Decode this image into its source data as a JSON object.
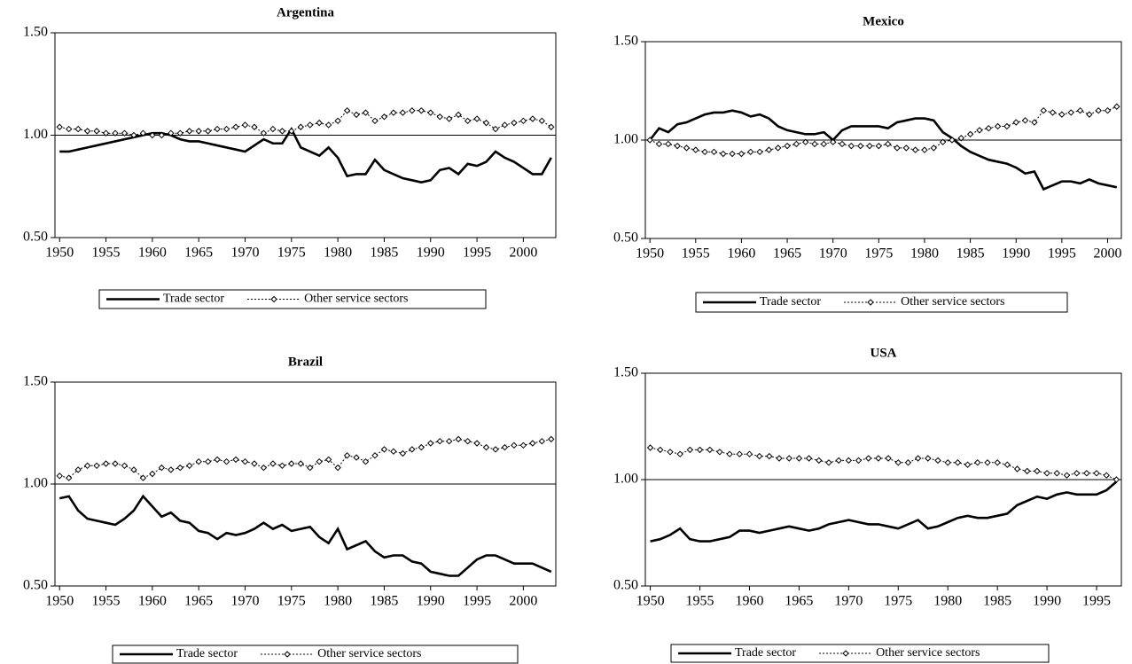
{
  "chart_data": [
    {
      "type": "line",
      "title": "Argentina",
      "x": [
        1950,
        1951,
        1952,
        1953,
        1954,
        1955,
        1956,
        1957,
        1958,
        1959,
        1960,
        1961,
        1962,
        1963,
        1964,
        1965,
        1966,
        1967,
        1968,
        1969,
        1970,
        1971,
        1972,
        1973,
        1974,
        1975,
        1976,
        1977,
        1978,
        1979,
        1980,
        1981,
        1982,
        1983,
        1984,
        1985,
        1986,
        1987,
        1988,
        1989,
        1990,
        1991,
        1992,
        1993,
        1994,
        1995,
        1996,
        1997,
        1998,
        1999,
        2000,
        2001,
        2002,
        2003
      ],
      "series": [
        {
          "name": "Trade sector",
          "color": "#000000",
          "line_style": "solid",
          "marker": "none",
          "values": [
            0.92,
            0.92,
            0.93,
            0.94,
            0.95,
            0.96,
            0.97,
            0.98,
            0.99,
            1.0,
            1.01,
            1.01,
            1.0,
            0.98,
            0.97,
            0.97,
            0.96,
            0.95,
            0.94,
            0.93,
            0.92,
            0.95,
            0.98,
            0.96,
            0.96,
            1.03,
            0.94,
            0.92,
            0.9,
            0.94,
            0.89,
            0.8,
            0.81,
            0.81,
            0.88,
            0.83,
            0.81,
            0.79,
            0.78,
            0.77,
            0.78,
            0.83,
            0.84,
            0.81,
            0.86,
            0.85,
            0.87,
            0.92,
            0.89,
            0.87,
            0.84,
            0.81,
            0.81,
            0.89
          ]
        },
        {
          "name": "Other service sectors",
          "color": "#000000",
          "line_style": "dotted",
          "marker": "diamond",
          "values": [
            1.04,
            1.03,
            1.03,
            1.02,
            1.02,
            1.01,
            1.01,
            1.01,
            1.0,
            1.01,
            1.0,
            1.0,
            1.01,
            1.01,
            1.02,
            1.02,
            1.02,
            1.03,
            1.03,
            1.04,
            1.05,
            1.04,
            1.01,
            1.03,
            1.02,
            1.02,
            1.04,
            1.05,
            1.06,
            1.05,
            1.07,
            1.12,
            1.1,
            1.11,
            1.07,
            1.09,
            1.11,
            1.11,
            1.12,
            1.12,
            1.11,
            1.09,
            1.08,
            1.1,
            1.07,
            1.08,
            1.06,
            1.03,
            1.05,
            1.06,
            1.07,
            1.08,
            1.07,
            1.04
          ]
        }
      ],
      "xlim": [
        1949.5,
        2003.5
      ],
      "xticks": [
        1950,
        1955,
        1960,
        1965,
        1970,
        1975,
        1980,
        1985,
        1990,
        1995,
        2000
      ],
      "ylim": [
        0.5,
        1.5
      ],
      "yticks": [
        {
          "value": 0.5,
          "label": "0.50"
        },
        {
          "value": 1,
          "label": "1.00"
        },
        {
          "value": 1.5,
          "label": "1.50"
        }
      ],
      "hline": 1,
      "legend": "bottom"
    },
    {
      "type": "line",
      "title": "Mexico",
      "x": [
        1950,
        1951,
        1952,
        1953,
        1954,
        1955,
        1956,
        1957,
        1958,
        1959,
        1960,
        1961,
        1962,
        1963,
        1964,
        1965,
        1966,
        1967,
        1968,
        1969,
        1970,
        1971,
        1972,
        1973,
        1974,
        1975,
        1976,
        1977,
        1978,
        1979,
        1980,
        1981,
        1982,
        1983,
        1984,
        1985,
        1986,
        1987,
        1988,
        1989,
        1990,
        1991,
        1992,
        1993,
        1994,
        1995,
        1996,
        1997,
        1998,
        1999,
        2000,
        2001
      ],
      "series": [
        {
          "name": "Trade sector",
          "color": "#000000",
          "line_style": "solid",
          "marker": "none",
          "values": [
            1.0,
            1.06,
            1.04,
            1.08,
            1.09,
            1.11,
            1.13,
            1.14,
            1.14,
            1.15,
            1.14,
            1.12,
            1.13,
            1.11,
            1.07,
            1.05,
            1.04,
            1.03,
            1.03,
            1.04,
            1.0,
            1.05,
            1.07,
            1.07,
            1.07,
            1.07,
            1.06,
            1.09,
            1.1,
            1.11,
            1.11,
            1.1,
            1.04,
            1.01,
            0.97,
            0.94,
            0.92,
            0.9,
            0.89,
            0.88,
            0.86,
            0.83,
            0.84,
            0.75,
            0.77,
            0.79,
            0.79,
            0.78,
            0.8,
            0.78,
            0.77,
            0.76
          ]
        },
        {
          "name": "Other service sectors",
          "color": "#000000",
          "line_style": "dotted",
          "marker": "diamond",
          "values": [
            1.0,
            0.98,
            0.98,
            0.97,
            0.96,
            0.95,
            0.94,
            0.94,
            0.93,
            0.93,
            0.93,
            0.94,
            0.94,
            0.95,
            0.96,
            0.97,
            0.98,
            0.99,
            0.98,
            0.98,
            0.99,
            0.98,
            0.97,
            0.97,
            0.97,
            0.97,
            0.98,
            0.96,
            0.96,
            0.95,
            0.95,
            0.96,
            0.99,
            1.0,
            1.01,
            1.03,
            1.05,
            1.06,
            1.07,
            1.07,
            1.09,
            1.1,
            1.09,
            1.15,
            1.14,
            1.13,
            1.14,
            1.15,
            1.13,
            1.15,
            1.15,
            1.17
          ]
        }
      ],
      "xlim": [
        1949.5,
        2001.5
      ],
      "xticks": [
        1950,
        1955,
        1960,
        1965,
        1970,
        1975,
        1980,
        1985,
        1990,
        1995,
        2000
      ],
      "ylim": [
        0.5,
        1.5
      ],
      "yticks": [
        {
          "value": 0.5,
          "label": "0.50"
        },
        {
          "value": 1,
          "label": "1.00"
        },
        {
          "value": 1.5,
          "label": "1.50"
        }
      ],
      "hline": 1,
      "legend": "bottom"
    },
    {
      "type": "line",
      "title": "Brazil",
      "x": [
        1950,
        1951,
        1952,
        1953,
        1954,
        1955,
        1956,
        1957,
        1958,
        1959,
        1960,
        1961,
        1962,
        1963,
        1964,
        1965,
        1966,
        1967,
        1968,
        1969,
        1970,
        1971,
        1972,
        1973,
        1974,
        1975,
        1976,
        1977,
        1978,
        1979,
        1980,
        1981,
        1982,
        1983,
        1984,
        1985,
        1986,
        1987,
        1988,
        1989,
        1990,
        1991,
        1992,
        1993,
        1994,
        1995,
        1996,
        1997,
        1998,
        1999,
        2000,
        2001,
        2002,
        2003
      ],
      "series": [
        {
          "name": "Trade sector",
          "color": "#000000",
          "line_style": "solid",
          "marker": "none",
          "values": [
            0.93,
            0.94,
            0.87,
            0.83,
            0.82,
            0.81,
            0.8,
            0.83,
            0.87,
            0.94,
            0.89,
            0.84,
            0.86,
            0.82,
            0.81,
            0.77,
            0.76,
            0.73,
            0.76,
            0.75,
            0.76,
            0.78,
            0.81,
            0.78,
            0.8,
            0.77,
            0.78,
            0.79,
            0.74,
            0.71,
            0.78,
            0.68,
            0.7,
            0.72,
            0.67,
            0.64,
            0.65,
            0.65,
            0.62,
            0.61,
            0.57,
            0.56,
            0.55,
            0.55,
            0.59,
            0.63,
            0.65,
            0.65,
            0.63,
            0.61,
            0.61,
            0.61,
            0.59,
            0.57
          ]
        },
        {
          "name": "Other service sectors",
          "color": "#000000",
          "line_style": "dotted",
          "marker": "diamond",
          "values": [
            1.04,
            1.03,
            1.07,
            1.09,
            1.09,
            1.1,
            1.1,
            1.09,
            1.07,
            1.03,
            1.05,
            1.08,
            1.07,
            1.08,
            1.09,
            1.11,
            1.11,
            1.12,
            1.11,
            1.12,
            1.11,
            1.1,
            1.08,
            1.1,
            1.09,
            1.1,
            1.1,
            1.08,
            1.11,
            1.12,
            1.08,
            1.14,
            1.13,
            1.11,
            1.14,
            1.17,
            1.16,
            1.15,
            1.17,
            1.18,
            1.2,
            1.21,
            1.21,
            1.22,
            1.21,
            1.2,
            1.18,
            1.17,
            1.18,
            1.19,
            1.19,
            1.2,
            1.21,
            1.22
          ]
        }
      ],
      "xlim": [
        1949.5,
        2003.5
      ],
      "xticks": [
        1950,
        1955,
        1960,
        1965,
        1970,
        1975,
        1980,
        1985,
        1990,
        1995,
        2000
      ],
      "ylim": [
        0.5,
        1.5
      ],
      "yticks": [
        {
          "value": 0.5,
          "label": "0.50"
        },
        {
          "value": 1,
          "label": "1.00"
        },
        {
          "value": 1.5,
          "label": "1.50"
        }
      ],
      "hline": 1,
      "legend": "bottom"
    },
    {
      "type": "line",
      "title": "USA",
      "x": [
        1950,
        1951,
        1952,
        1953,
        1954,
        1955,
        1956,
        1957,
        1958,
        1959,
        1960,
        1961,
        1962,
        1963,
        1964,
        1965,
        1966,
        1967,
        1968,
        1969,
        1970,
        1971,
        1972,
        1973,
        1974,
        1975,
        1976,
        1977,
        1978,
        1979,
        1980,
        1981,
        1982,
        1983,
        1984,
        1985,
        1986,
        1987,
        1988,
        1989,
        1990,
        1991,
        1992,
        1993,
        1994,
        1995,
        1996,
        1997
      ],
      "series": [
        {
          "name": "Trade sector",
          "color": "#000000",
          "line_style": "solid",
          "marker": "none",
          "values": [
            0.71,
            0.72,
            0.74,
            0.77,
            0.72,
            0.71,
            0.71,
            0.72,
            0.73,
            0.76,
            0.76,
            0.75,
            0.76,
            0.77,
            0.78,
            0.77,
            0.76,
            0.77,
            0.79,
            0.8,
            0.81,
            0.8,
            0.79,
            0.79,
            0.78,
            0.77,
            0.79,
            0.81,
            0.77,
            0.78,
            0.8,
            0.82,
            0.83,
            0.82,
            0.82,
            0.83,
            0.84,
            0.88,
            0.9,
            0.92,
            0.91,
            0.93,
            0.94,
            0.93,
            0.93,
            0.93,
            0.95,
            0.99
          ]
        },
        {
          "name": "Other service sectors",
          "color": "#000000",
          "line_style": "dotted",
          "marker": "diamond",
          "values": [
            1.15,
            1.14,
            1.13,
            1.12,
            1.14,
            1.14,
            1.14,
            1.13,
            1.12,
            1.12,
            1.12,
            1.11,
            1.11,
            1.1,
            1.1,
            1.1,
            1.1,
            1.09,
            1.08,
            1.09,
            1.09,
            1.09,
            1.1,
            1.1,
            1.1,
            1.08,
            1.08,
            1.1,
            1.1,
            1.09,
            1.08,
            1.08,
            1.07,
            1.08,
            1.08,
            1.08,
            1.07,
            1.05,
            1.04,
            1.04,
            1.03,
            1.03,
            1.02,
            1.03,
            1.03,
            1.03,
            1.02,
            1.0
          ]
        }
      ],
      "xlim": [
        1949.5,
        1997.5
      ],
      "xticks": [
        1950,
        1955,
        1960,
        1965,
        1970,
        1975,
        1980,
        1985,
        1990,
        1995
      ],
      "ylim": [
        0.5,
        1.5
      ],
      "yticks": [
        {
          "value": 0.5,
          "label": "0.50"
        },
        {
          "value": 1,
          "label": "1.00"
        },
        {
          "value": 1.5,
          "label": "1.50"
        }
      ],
      "hline": 1,
      "legend": "bottom"
    }
  ]
}
